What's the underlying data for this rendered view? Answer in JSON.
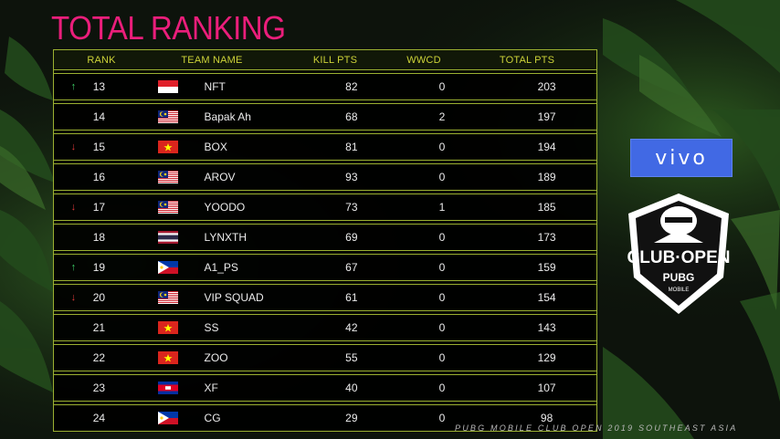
{
  "title": "TOTAL RANKING",
  "columns": {
    "rank": "RANK",
    "team": "TEAM NAME",
    "kill": "KILL PTS",
    "wwcd": "WWCD",
    "total": "TOTAL PTS"
  },
  "rows": [
    {
      "trend": "up",
      "rank": "13",
      "flag": "indonesia",
      "team": "NFT",
      "kill": "82",
      "wwcd": "0",
      "total": "203"
    },
    {
      "trend": "none",
      "rank": "14",
      "flag": "malaysia",
      "team": "Bapak Ah",
      "kill": "68",
      "wwcd": "2",
      "total": "197"
    },
    {
      "trend": "down",
      "rank": "15",
      "flag": "vietnam",
      "team": "BOX",
      "kill": "81",
      "wwcd": "0",
      "total": "194"
    },
    {
      "trend": "none",
      "rank": "16",
      "flag": "malaysia",
      "team": "AROV",
      "kill": "93",
      "wwcd": "0",
      "total": "189"
    },
    {
      "trend": "down",
      "rank": "17",
      "flag": "malaysia",
      "team": "YOODO",
      "kill": "73",
      "wwcd": "1",
      "total": "185"
    },
    {
      "trend": "none",
      "rank": "18",
      "flag": "thailand",
      "team": "LYNXTH",
      "kill": "69",
      "wwcd": "0",
      "total": "173"
    },
    {
      "trend": "up",
      "rank": "19",
      "flag": "philippines",
      "team": "A1_PS",
      "kill": "67",
      "wwcd": "0",
      "total": "159"
    },
    {
      "trend": "down",
      "rank": "20",
      "flag": "malaysia",
      "team": "VIP SQUAD",
      "kill": "61",
      "wwcd": "0",
      "total": "154"
    },
    {
      "trend": "none",
      "rank": "21",
      "flag": "vietnam",
      "team": "SS",
      "kill": "42",
      "wwcd": "0",
      "total": "143"
    },
    {
      "trend": "none",
      "rank": "22",
      "flag": "vietnam",
      "team": "ZOO",
      "kill": "55",
      "wwcd": "0",
      "total": "129"
    },
    {
      "trend": "none",
      "rank": "23",
      "flag": "cambodia",
      "team": "XF",
      "kill": "40",
      "wwcd": "0",
      "total": "107"
    },
    {
      "trend": "none",
      "rank": "24",
      "flag": "philippines",
      "team": "CG",
      "kill": "29",
      "wwcd": "0",
      "total": "98"
    }
  ],
  "sponsor": "vivo",
  "logo": {
    "line1": "CLUB·OPEN",
    "line2": "PUBG",
    "line3": "MOBILE"
  },
  "footer": "PUBG MOBILE CLUB OPEN 2019 SOUTHEAST ASIA",
  "colors": {
    "title": "#ea1e7b",
    "header_text": "#ccd238",
    "border": "#9bb031",
    "arrow_up": "#3fd46a",
    "arrow_down": "#e33a3a",
    "sponsor_bg": "#4169e4"
  }
}
